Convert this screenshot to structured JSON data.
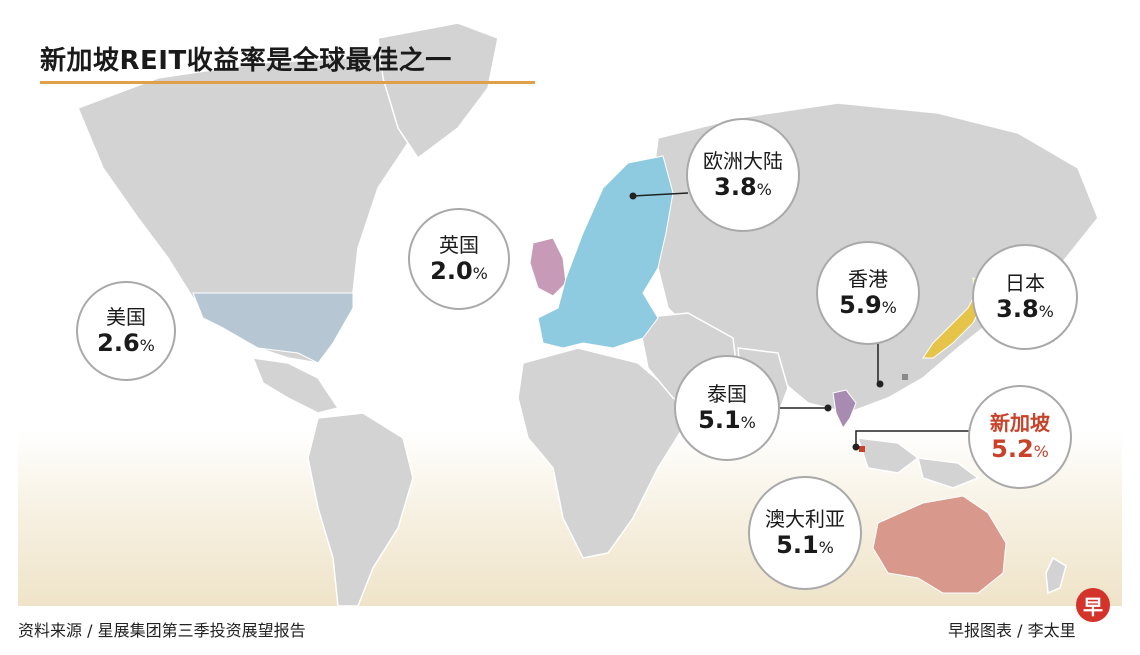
{
  "chart_data": {
    "type": "map",
    "title": "新加坡REIT收益率是全球最佳之一",
    "unit": "%",
    "markets": [
      {
        "name": "美国",
        "value": 2.6,
        "color": "#b6c7d3"
      },
      {
        "name": "英国",
        "value": 2.0,
        "color": "#c79bb7"
      },
      {
        "name": "欧洲大陆",
        "value": 3.8,
        "color": "#8fcbe0"
      },
      {
        "name": "香港",
        "value": 5.9,
        "color": "#8a8a8a"
      },
      {
        "name": "日本",
        "value": 3.8,
        "color": "#e6c44a"
      },
      {
        "name": "泰国",
        "value": 5.1,
        "color": "#a78bb0"
      },
      {
        "name": "新加坡",
        "value": 5.2,
        "color": "#c8422a",
        "highlight": true
      },
      {
        "name": "澳大利亚",
        "value": 5.1,
        "color": "#d8988c"
      }
    ]
  },
  "footer": {
    "source": "资料来源 / 星展集团第三季投资展望报告",
    "credit": "早报图表 / 李太里",
    "logo_char": "早"
  },
  "colors": {
    "land": "#d3d3d3",
    "highlight_text": "#c8422a",
    "title_underline": "#e0a04a"
  }
}
